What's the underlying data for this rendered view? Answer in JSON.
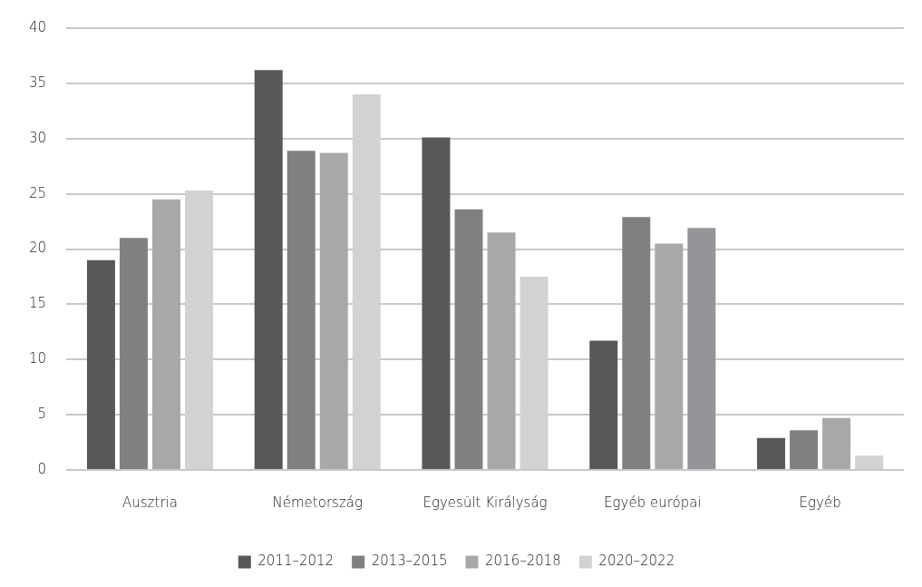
{
  "chart_data": {
    "type": "bar",
    "categories": [
      "Ausztria",
      "Németország",
      "Egyesült Királyság",
      "Egyéb európai",
      "Egyéb"
    ],
    "series": [
      {
        "name": "2011–2012",
        "color": "#58585a",
        "values": [
          19.0,
          36.2,
          30.1,
          11.7,
          2.9
        ]
      },
      {
        "name": "2013–2015",
        "color": "#808083",
        "values": [
          21.0,
          28.9,
          23.6,
          22.9,
          3.6
        ]
      },
      {
        "name": "2016–2018",
        "color": "#a7a8aa",
        "values": [
          24.5,
          28.7,
          21.5,
          20.5,
          4.7
        ]
      },
      {
        "name": "2020–2022",
        "color": "#d1d2d4",
        "colors": [
          "#d1d2d4",
          "#d1d2d4",
          "#d1d2d4",
          "#939598",
          "#d1d2d4"
        ],
        "values": [
          25.3,
          34.0,
          17.5,
          21.9,
          1.3
        ]
      }
    ],
    "ylim": [
      0,
      40
    ],
    "yticks": [
      0,
      5,
      10,
      15,
      20,
      25,
      30,
      35,
      40
    ],
    "grid": "y",
    "legend": "bottom"
  }
}
